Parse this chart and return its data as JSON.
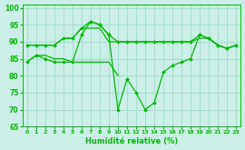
{
  "xlabel": "Humidité relative (%)",
  "bg_color": "#cceee8",
  "grid_color": "#99ddcc",
  "line_color": "#00bb00",
  "xlim": [
    -0.5,
    23.5
  ],
  "ylim": [
    65,
    101
  ],
  "yticks": [
    65,
    70,
    75,
    80,
    85,
    90,
    95,
    100
  ],
  "xticks": [
    0,
    1,
    2,
    3,
    4,
    5,
    6,
    7,
    8,
    9,
    10,
    11,
    12,
    13,
    14,
    15,
    16,
    17,
    18,
    19,
    20,
    21,
    22,
    23
  ],
  "curve_bottom_x": [
    0,
    1,
    2,
    3,
    4,
    5,
    6,
    7,
    8,
    9,
    10
  ],
  "curve_bottom_y": [
    84,
    86,
    86,
    85,
    85,
    84,
    84,
    84,
    84,
    84,
    80
  ],
  "curve_top_x": [
    0,
    1,
    2,
    3,
    4,
    5,
    6,
    7,
    8,
    9,
    10,
    11,
    12,
    13,
    14,
    15,
    16,
    17,
    18,
    19,
    20,
    21,
    22,
    23
  ],
  "curve_top_y": [
    89,
    89,
    89,
    89,
    91,
    91,
    94,
    96,
    95,
    92,
    90,
    90,
    90,
    90,
    90,
    90,
    90,
    90,
    90,
    92,
    91,
    89,
    88,
    89
  ],
  "curve_mid1_x": [
    0,
    1,
    2,
    3,
    4,
    5,
    6,
    7,
    8,
    9,
    10,
    11,
    12,
    13,
    14,
    15,
    16,
    17,
    18,
    19,
    20,
    21,
    22,
    23
  ],
  "curve_mid1_y": [
    89,
    89,
    89,
    89,
    91,
    91,
    94,
    94,
    94,
    90,
    90,
    90,
    90,
    90,
    90,
    90,
    90,
    90,
    90,
    91,
    91,
    89,
    88,
    89
  ],
  "curve_main_x": [
    0,
    1,
    2,
    3,
    4,
    5,
    6,
    7,
    8,
    9,
    10,
    11,
    12,
    13,
    14,
    15,
    16,
    17,
    18,
    19,
    20,
    21,
    22,
    23
  ],
  "curve_main_y": [
    84,
    86,
    85,
    84,
    84,
    84,
    92,
    96,
    95,
    92,
    70,
    79,
    75,
    70,
    72,
    81,
    83,
    84,
    85,
    92,
    91,
    89,
    88,
    89
  ]
}
